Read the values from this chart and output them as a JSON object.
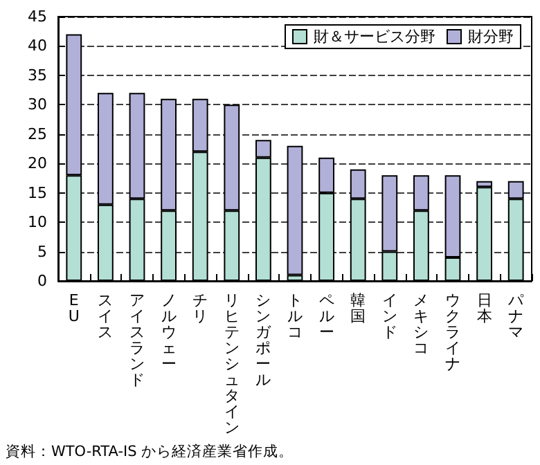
{
  "chart_data": {
    "type": "bar",
    "stacked": true,
    "categories": [
      "EU",
      "スイス",
      "アイスランド",
      "ノルウェー",
      "チリ",
      "リヒテンシュタイン",
      "シンガポール",
      "トルコ",
      "ペルー",
      "韓国",
      "インド",
      "メキシコ",
      "ウクライナ",
      "日本",
      "パナマ"
    ],
    "series": [
      {
        "name": "財＆サービス分野",
        "color": "#b3dfd4",
        "values": [
          18,
          13,
          14,
          12,
          22,
          12,
          21,
          1,
          15,
          14,
          5,
          12,
          4,
          16,
          14
        ]
      },
      {
        "name": "財分野",
        "color": "#b1b0d9",
        "values": [
          24,
          19,
          18,
          19,
          9,
          18,
          3,
          22,
          6,
          5,
          13,
          6,
          14,
          1,
          3
        ]
      }
    ],
    "ylim": [
      0,
      45
    ],
    "yticks": [
      0,
      5,
      10,
      15,
      20,
      25,
      30,
      35,
      40,
      45
    ],
    "grid": "y",
    "legend": "top right",
    "line_style": "dashed",
    "annotations": [
      "資料：WTO-RTA-IS から経済産業省作成。"
    ]
  }
}
